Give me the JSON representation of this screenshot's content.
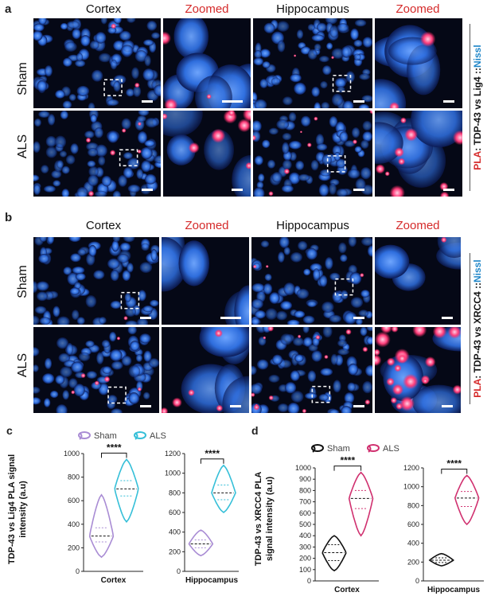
{
  "panel_a": {
    "letter": "a",
    "columns": [
      "Cortex",
      "Zoomed",
      "Hippocampus",
      "Zoomed"
    ],
    "rows": [
      "Sham",
      "ALS"
    ],
    "side_label": {
      "pla": "PLA",
      "middle": ": TDP-43 vs Lig4 ::",
      "nissl": "Nissl"
    }
  },
  "panel_b": {
    "letter": "b",
    "columns": [
      "Cortex",
      "Zoomed",
      "Hippocampus",
      "Zoomed"
    ],
    "rows": [
      "Sham",
      "ALS"
    ],
    "side_label": {
      "pla": "PLA",
      "middle": ": TDP-43 vs XRCC4 ::",
      "nissl": "Nissl"
    }
  },
  "colors": {
    "nuclei_blue": "#2f6fe0",
    "pla_red": "#ff3d7a",
    "background": "#050816",
    "sham_c": "#a98cd4",
    "als_c": "#35bfd8",
    "sham_d": "#111111",
    "als_d": "#d0306f"
  },
  "chart_data": [
    {
      "id": "c",
      "letter": "c",
      "type": "violin",
      "legend": [
        "Sham",
        "ALS"
      ],
      "ylabel_lines": [
        "TDP-43 vs Lig4 PLA signal",
        "intensity (a.u)"
      ],
      "subplots": [
        {
          "category": "Cortex",
          "ylim": [
            0,
            1000
          ],
          "yticks": [
            0,
            200,
            400,
            600,
            800,
            1000
          ],
          "series": [
            {
              "name": "Sham",
              "median": 300,
              "q1": 250,
              "q3": 370,
              "min": 120,
              "max": 650
            },
            {
              "name": "ALS",
              "median": 700,
              "q1": 640,
              "q3": 770,
              "min": 420,
              "max": 950
            }
          ],
          "significance": "****"
        },
        {
          "category": "Hippocampus",
          "ylim": [
            0,
            1200
          ],
          "yticks": [
            0,
            200,
            400,
            600,
            800,
            1000,
            1200
          ],
          "series": [
            {
              "name": "Sham",
              "median": 280,
              "q1": 240,
              "q3": 320,
              "min": 160,
              "max": 420
            },
            {
              "name": "ALS",
              "median": 800,
              "q1": 730,
              "q3": 880,
              "min": 600,
              "max": 1080
            }
          ],
          "significance": "****"
        }
      ]
    },
    {
      "id": "d",
      "letter": "d",
      "type": "violin",
      "legend": [
        "Sham",
        "ALS"
      ],
      "ylabel_lines": [
        "TDP-43 vs XRCC4 PLA",
        "signal intensity (a.u)"
      ],
      "subplots": [
        {
          "category": "Cortex",
          "ylim": [
            0,
            1000
          ],
          "yticks": [
            0,
            100,
            200,
            300,
            400,
            500,
            600,
            700,
            800,
            900,
            1000
          ],
          "series": [
            {
              "name": "Sham",
              "median": 250,
              "q1": 180,
              "q3": 320,
              "min": 90,
              "max": 400
            },
            {
              "name": "ALS",
              "median": 730,
              "q1": 640,
              "q3": 800,
              "min": 400,
              "max": 960
            }
          ],
          "significance": "****"
        },
        {
          "category": "Hippocampus",
          "ylim": [
            0,
            1200
          ],
          "yticks": [
            0,
            200,
            400,
            600,
            800,
            1000,
            1200
          ],
          "series": [
            {
              "name": "Sham",
              "median": 220,
              "q1": 195,
              "q3": 245,
              "min": 160,
              "max": 290
            },
            {
              "name": "ALS",
              "median": 880,
              "q1": 790,
              "q3": 950,
              "min": 600,
              "max": 1120
            }
          ],
          "significance": "****"
        }
      ]
    }
  ]
}
